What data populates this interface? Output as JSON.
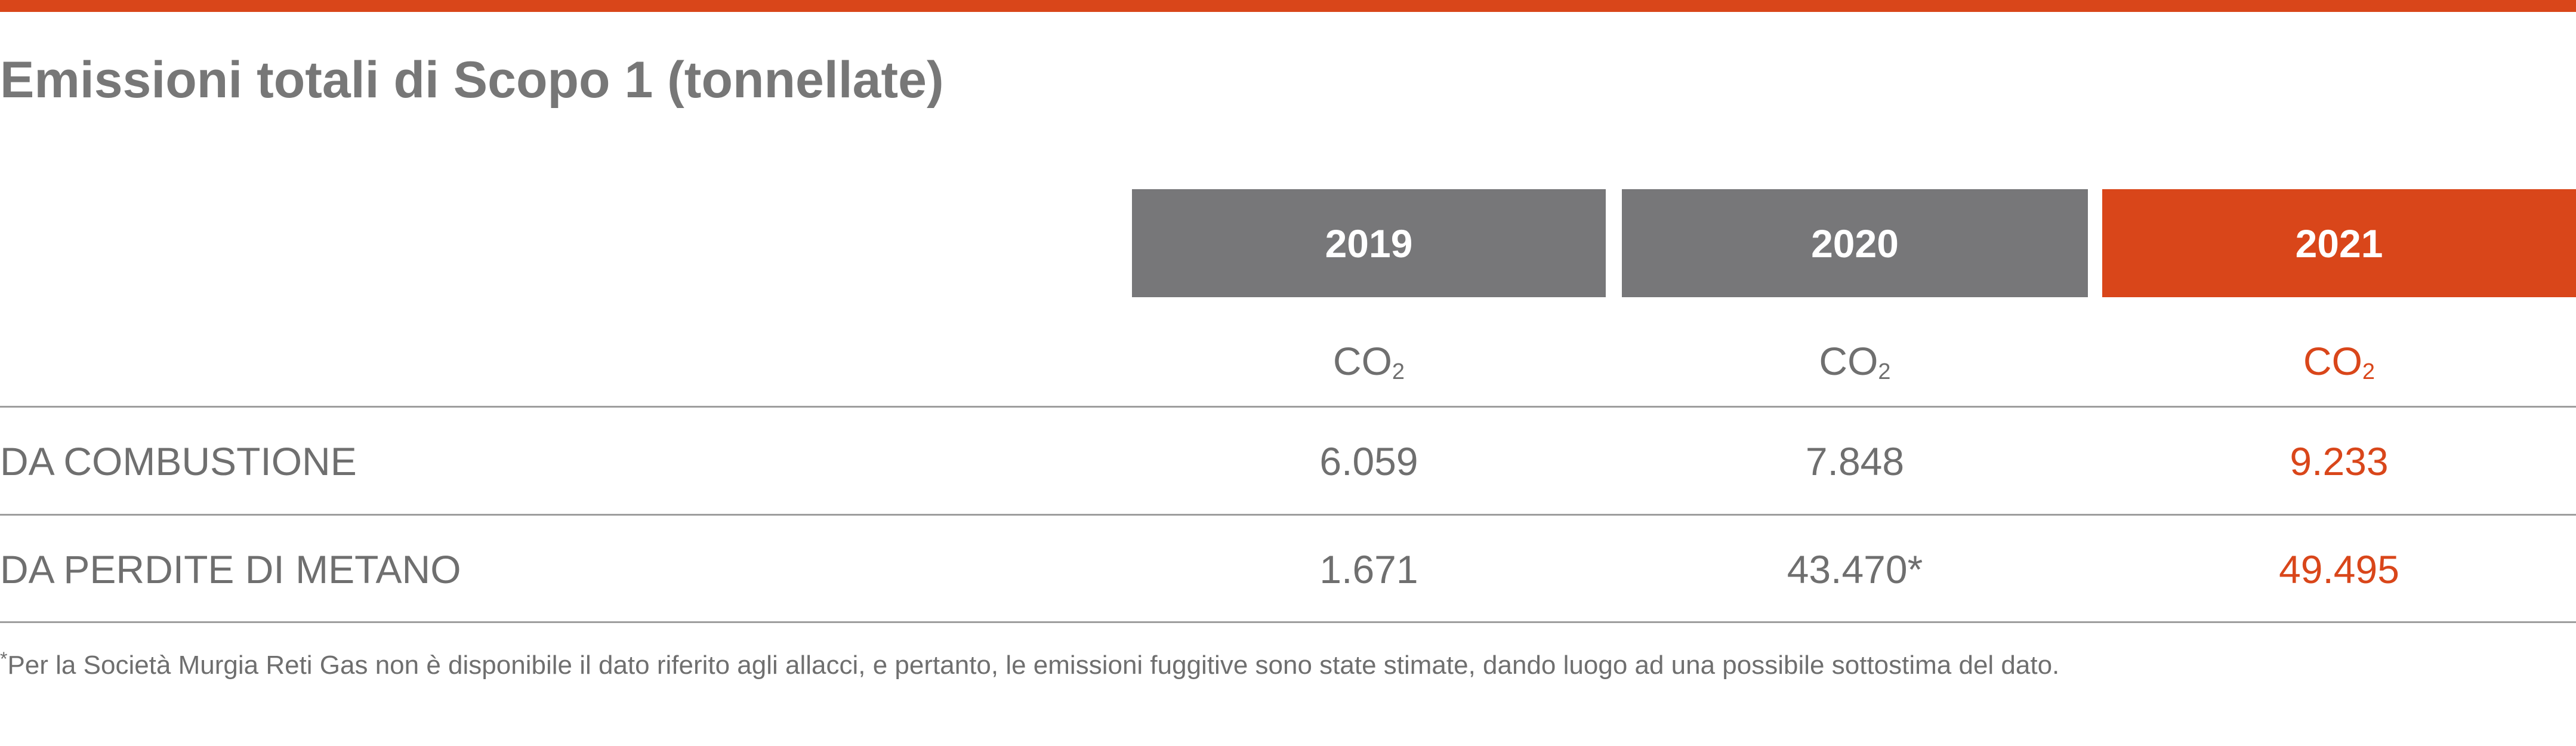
{
  "title": "Emissioni totali di Scopo 1 (tonnellate)",
  "colors": {
    "accent": "#d9461a",
    "header_gray": "#777779",
    "text_gray": "#6f6f6f",
    "rule_gray": "#9e9e9e"
  },
  "columns": [
    {
      "year": "2019",
      "unit_main": "CO",
      "unit_sub": "2",
      "highlight": false
    },
    {
      "year": "2020",
      "unit_main": "CO",
      "unit_sub": "2",
      "highlight": false
    },
    {
      "year": "2021",
      "unit_main": "CO",
      "unit_sub": "2",
      "highlight": true
    }
  ],
  "rows": [
    {
      "label": "DA COMBUSTIONE",
      "values": [
        "6.059",
        "7.848",
        "9.233"
      ]
    },
    {
      "label": "DA PERDITE DI METANO",
      "values": [
        "1.671",
        "43.470*",
        "49.495"
      ]
    }
  ],
  "footnote": {
    "marker": "*",
    "text": "Per la Società Murgia Reti Gas non è disponibile il dato riferito agli allacci, e pertanto, le emissioni fuggitive sono state stimate, dando luogo ad una possibile sottostima del dato."
  }
}
